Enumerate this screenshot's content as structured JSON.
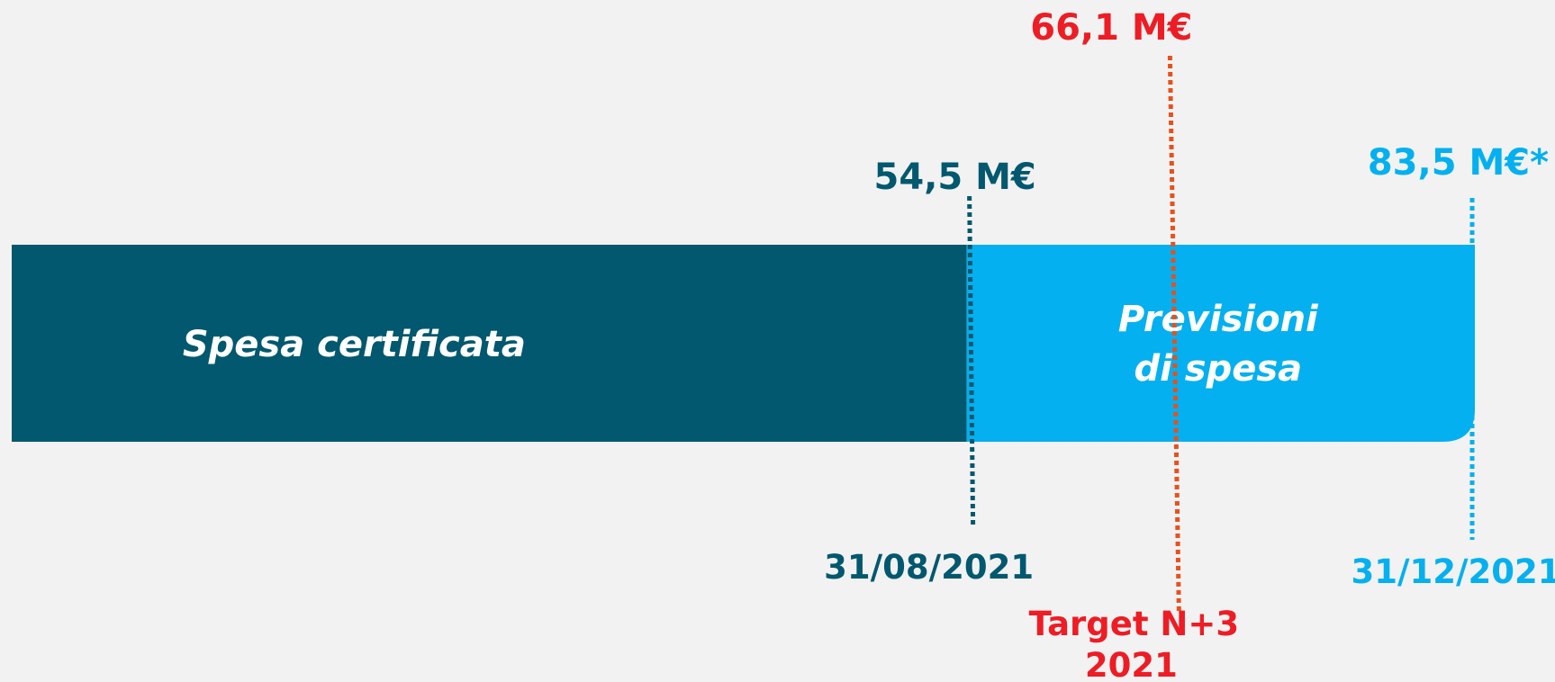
{
  "colors": {
    "background": "#f2f2f2",
    "certified": "#02586e",
    "forecast": "#04b0ef",
    "target": "#ee1c24",
    "target_line": "#e8501c"
  },
  "chart_data": {
    "type": "bar",
    "orientation": "horizontal",
    "stacked": true,
    "unit": "M€",
    "segments": [
      {
        "label": "Spesa certificata",
        "from": 0,
        "to": 54.5,
        "color": "#02586e"
      },
      {
        "label_lines": [
          "Previsioni",
          "di spesa"
        ],
        "from": 54.5,
        "to": 83.5,
        "color": "#04b0ef"
      }
    ],
    "markers": [
      {
        "id": "certified",
        "value": 54.5,
        "value_label": "54,5 M€",
        "date_label": "31/08/2021",
        "color": "#02586e"
      },
      {
        "id": "target",
        "value": 66.1,
        "value_label": "66,1 M€",
        "caption_lines": [
          "Target N+3",
          "2021"
        ],
        "color": "#ee1c24",
        "line_color": "#e8501c"
      },
      {
        "id": "forecast",
        "value": 83.5,
        "value_label": "83,5 M€*",
        "date_label": "31/12/2021",
        "color": "#04b0ef"
      }
    ],
    "xlim": [
      0,
      83.5
    ],
    "grid": false,
    "legend": "none"
  }
}
